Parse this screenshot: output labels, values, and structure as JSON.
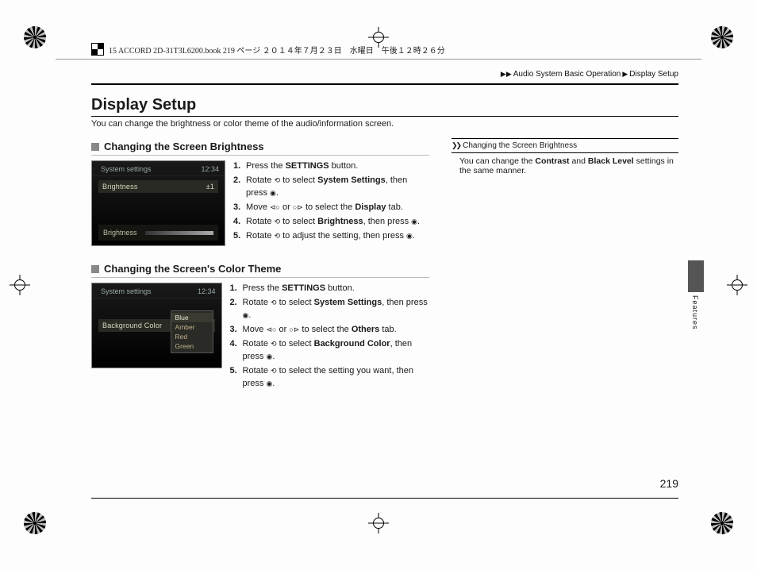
{
  "file_strip": "15 ACCORD 2D-31T3L6200.book  219 ページ  ２０１４年７月２３日　水曜日　午後１２時２６分",
  "breadcrumb": {
    "a": "Audio System Basic Operation",
    "b": "Display Setup",
    "arrow": "▶▶"
  },
  "title": "Display Setup",
  "intro": "You can change the brightness or color theme of the audio/information screen.",
  "sec1": {
    "title": "Changing the Screen Brightness",
    "screenshot": {
      "hdr_left": "System settings",
      "hdr_right": "12:34",
      "line1": "Brightness",
      "line1_val": "±1",
      "ctrl_label": "Brightness"
    },
    "steps": [
      {
        "pre": "Press the ",
        "b": "SETTINGS",
        "post": " button."
      },
      {
        "pre": "Rotate ",
        "g1": "⟲",
        "mid": " to select ",
        "b": "System Settings",
        "post": ", then press ",
        "g2": "◉",
        "end": "."
      },
      {
        "pre": "Move ",
        "g1": "⊲○",
        "mid": " or ",
        "g2": "○⊳",
        "mid2": " to select the ",
        "b": "Display",
        "post": " tab."
      },
      {
        "pre": "Rotate ",
        "g1": "⟲",
        "mid": " to select ",
        "b": "Brightness",
        "post": ", then press ",
        "g2": "◉",
        "end": "."
      },
      {
        "pre": "Rotate ",
        "g1": "⟲",
        "mid": " to adjust the setting, then press ",
        "g2": "◉",
        "end": "."
      }
    ]
  },
  "sec2": {
    "title": "Changing the Screen's Color Theme",
    "screenshot": {
      "hdr_left": "System settings",
      "hdr_right": "12:34",
      "ctrl_label": "Background Color",
      "menu": [
        "Blue",
        "Amber",
        "Red",
        "Green"
      ]
    },
    "steps": [
      {
        "pre": "Press the ",
        "b": "SETTINGS",
        "post": " button."
      },
      {
        "pre": "Rotate ",
        "g1": "⟲",
        "mid": " to select ",
        "b": "System Settings",
        "post": ", then press ",
        "g2": "◉",
        "end": "."
      },
      {
        "pre": "Move ",
        "g1": "⊲○",
        "mid": " or ",
        "g2": "○⊳",
        "mid2": " to select the ",
        "b": "Others",
        "post": " tab."
      },
      {
        "pre": "Rotate ",
        "g1": "⟲",
        "mid": " to select ",
        "b": "Background Color",
        "post": ", then press ",
        "g2": "◉",
        "end": "."
      },
      {
        "pre": "Rotate ",
        "g1": "⟲",
        "mid": " to select the setting you want, then press ",
        "g2": "◉",
        "end": "."
      }
    ]
  },
  "side": {
    "title": "Changing the Screen Brightness",
    "body_pre": "You can change the ",
    "b1": "Contrast",
    "mid": " and ",
    "b2": "Black Level",
    "body_post": " settings in the same manner."
  },
  "thumb_label": "Features",
  "page_num": "219"
}
